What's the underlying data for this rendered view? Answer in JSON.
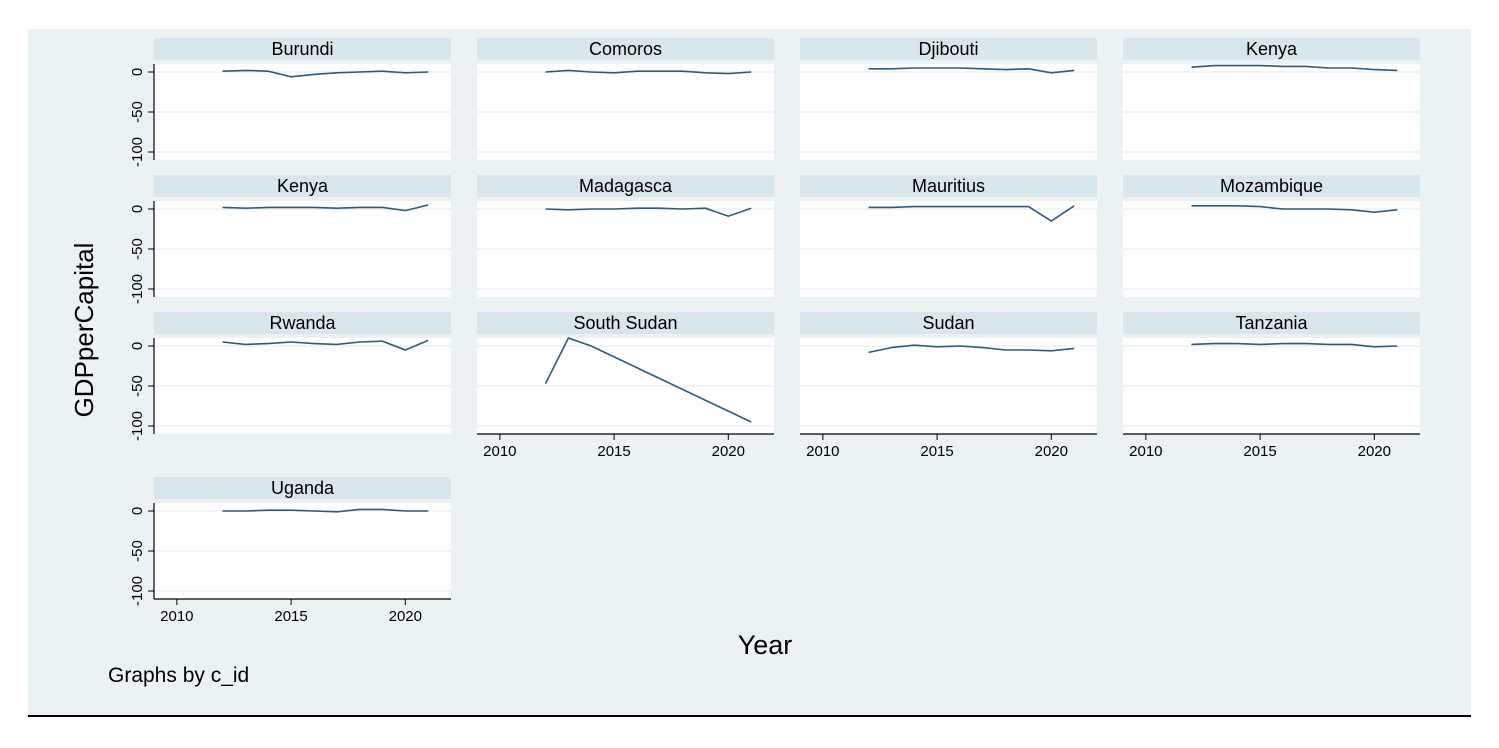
{
  "colors": {
    "outer_background": "#eaf2f3",
    "plot_background": "#ffffff",
    "strip_background": "#d9e6eb",
    "line": "#2e5a7f",
    "gridline": "#eaf2f3",
    "text": "#000000"
  },
  "chart_data": {
    "type": "line",
    "layout": "small-multiples",
    "ylabel": "GDPperCapital",
    "xlabel": "Year",
    "note": "Graphs by c_id",
    "xlim": [
      2009,
      2022
    ],
    "ylim": [
      -110,
      10
    ],
    "xticks": [
      2010,
      2015,
      2020
    ],
    "yticks": [
      0,
      -50,
      -100
    ],
    "xtick_labels": [
      "2010",
      "2015",
      "2020"
    ],
    "ytick_labels": [
      "0",
      "-50",
      "-100"
    ],
    "grid": true,
    "panels": [
      {
        "name": "Burundi",
        "x": [
          2012,
          2013,
          2014,
          2015,
          2016,
          2017,
          2018,
          2019,
          2020,
          2021
        ],
        "y": [
          1,
          2,
          1,
          -6,
          -3,
          -1,
          0,
          1,
          -1,
          0
        ]
      },
      {
        "name": "Comoros",
        "x": [
          2012,
          2013,
          2014,
          2015,
          2016,
          2017,
          2018,
          2019,
          2020,
          2021
        ],
        "y": [
          0,
          2,
          0,
          -1,
          1,
          1,
          1,
          -1,
          -2,
          0
        ]
      },
      {
        "name": "Djibouti",
        "x": [
          2012,
          2013,
          2014,
          2015,
          2016,
          2017,
          2018,
          2019,
          2020,
          2021
        ],
        "y": [
          4,
          4,
          5,
          5,
          5,
          4,
          3,
          4,
          -1,
          2
        ]
      },
      {
        "name": "Kenya",
        "x": [
          2012,
          2013,
          2014,
          2015,
          2016,
          2017,
          2018,
          2019,
          2020,
          2021
        ],
        "y": [
          6,
          8,
          8,
          8,
          7,
          7,
          5,
          5,
          3,
          2
        ]
      },
      {
        "name": "Kenya",
        "x": [
          2012,
          2013,
          2014,
          2015,
          2016,
          2017,
          2018,
          2019,
          2020,
          2021
        ],
        "y": [
          2,
          1,
          2,
          2,
          2,
          1,
          2,
          2,
          -2,
          5
        ]
      },
      {
        "name": "Madagasca",
        "x": [
          2012,
          2013,
          2014,
          2015,
          2016,
          2017,
          2018,
          2019,
          2020,
          2021
        ],
        "y": [
          0,
          -1,
          0,
          0,
          1,
          1,
          0,
          1,
          -9,
          1
        ]
      },
      {
        "name": "Mauritius",
        "x": [
          2012,
          2013,
          2014,
          2015,
          2016,
          2017,
          2018,
          2019,
          2020,
          2021
        ],
        "y": [
          2,
          2,
          3,
          3,
          3,
          3,
          3,
          3,
          -15,
          4
        ]
      },
      {
        "name": "Mozambique",
        "x": [
          2012,
          2013,
          2014,
          2015,
          2016,
          2017,
          2018,
          2019,
          2020,
          2021
        ],
        "y": [
          4,
          4,
          4,
          3,
          0,
          0,
          0,
          -1,
          -4,
          -1
        ]
      },
      {
        "name": "Rwanda",
        "x": [
          2012,
          2013,
          2014,
          2015,
          2016,
          2017,
          2018,
          2019,
          2020,
          2021
        ],
        "y": [
          5,
          2,
          3,
          5,
          3,
          2,
          5,
          6,
          -5,
          7
        ]
      },
      {
        "name": "South Sudan",
        "x": [
          2012,
          2013,
          2014,
          2021
        ],
        "y": [
          -47,
          10,
          0,
          -95
        ]
      },
      {
        "name": "Sudan",
        "x": [
          2012,
          2013,
          2014,
          2015,
          2016,
          2017,
          2018,
          2019,
          2020,
          2021
        ],
        "y": [
          -8,
          -2,
          1,
          -1,
          0,
          -2,
          -5,
          -5,
          -6,
          -3
        ]
      },
      {
        "name": "Tanzania",
        "x": [
          2012,
          2013,
          2014,
          2015,
          2016,
          2017,
          2018,
          2019,
          2020,
          2021
        ],
        "y": [
          2,
          3,
          3,
          2,
          3,
          3,
          2,
          2,
          -1,
          0
        ]
      },
      {
        "name": "Uganda",
        "x": [
          2012,
          2013,
          2014,
          2015,
          2016,
          2017,
          2018,
          2019,
          2020,
          2021
        ],
        "y": [
          0,
          0,
          1,
          1,
          0,
          -1,
          2,
          2,
          0,
          0
        ]
      }
    ]
  }
}
